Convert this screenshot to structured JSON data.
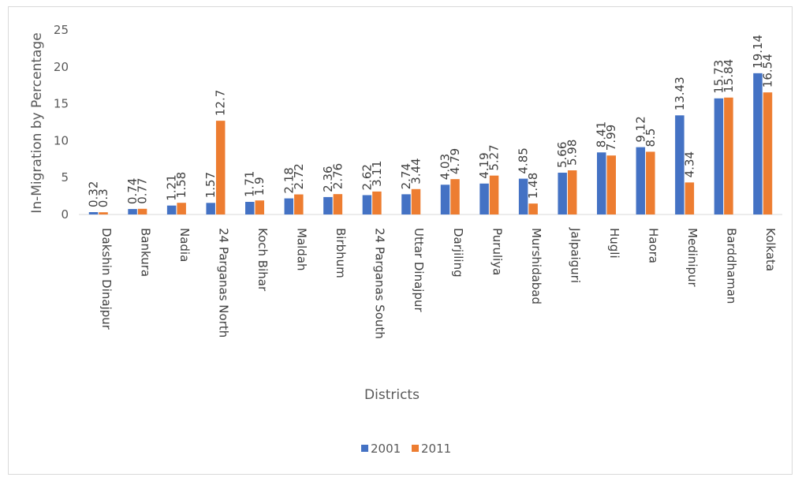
{
  "chart_data": {
    "type": "bar",
    "categories": [
      "Dakshin Dinajpur",
      "Bankura",
      "Nadia",
      "24 Parganas North",
      "Koch Bihar",
      "Maldah",
      "Birbhum",
      "24 Parganas South",
      "Uttar Dinajpur",
      "Darjiling",
      "Puruliya",
      "Murshidabad",
      "Jalpaiguri",
      "Hugli",
      "Haora",
      "Medinipur",
      "Barddhaman",
      "Kolkata"
    ],
    "series": [
      {
        "name": "2001",
        "color": "#4472c4",
        "values": [
          0.32,
          0.74,
          1.21,
          1.57,
          1.71,
          2.18,
          2.36,
          2.62,
          2.74,
          4.03,
          4.19,
          4.85,
          5.66,
          8.41,
          9.12,
          13.43,
          15.73,
          19.14
        ]
      },
      {
        "name": "2011",
        "color": "#ed7d31",
        "values": [
          0.3,
          0.77,
          1.58,
          12.7,
          1.9,
          2.72,
          2.76,
          3.11,
          3.44,
          4.79,
          5.27,
          1.48,
          5.98,
          7.99,
          8.5,
          4.34,
          15.84,
          16.54
        ]
      }
    ],
    "xlabel": "Districts",
    "ylabel": "In-Migration by Percentage",
    "ylim": [
      0,
      25
    ],
    "yticks": [
      0,
      5,
      10,
      15,
      20,
      25
    ],
    "grid": false,
    "legend": "bottom-center"
  }
}
